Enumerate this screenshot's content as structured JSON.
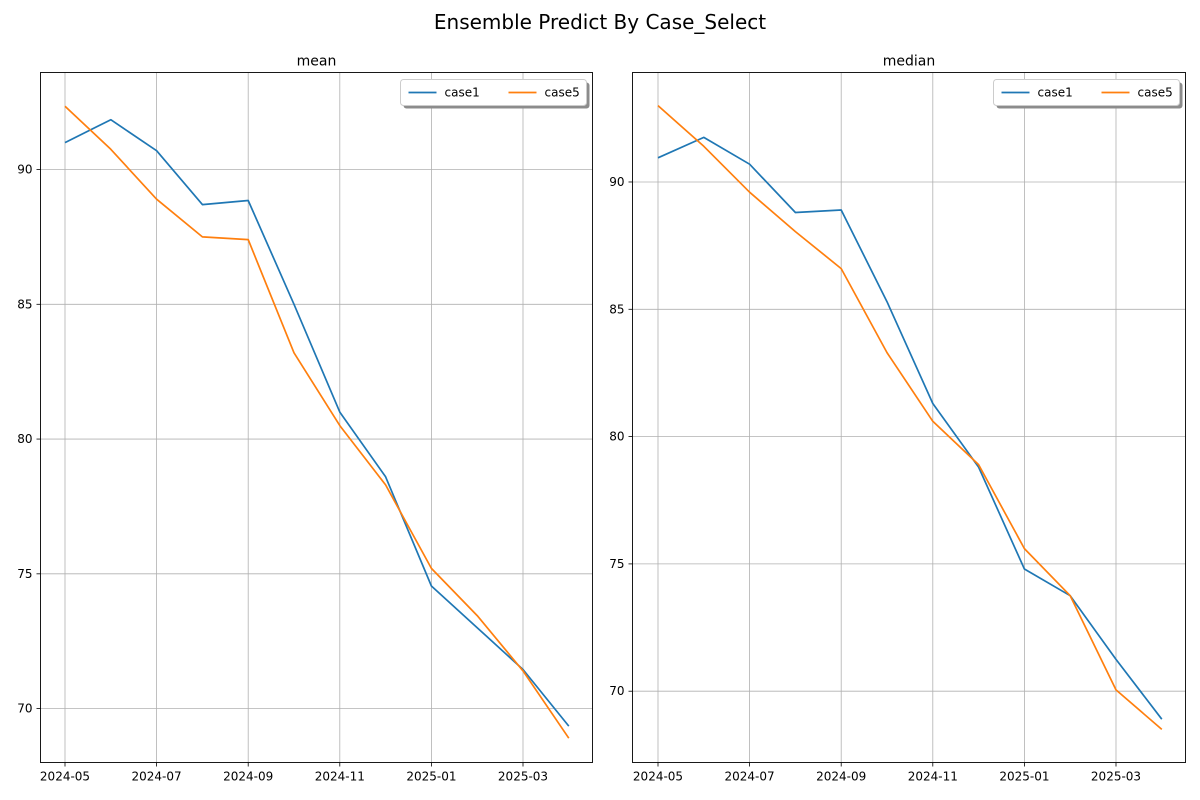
{
  "figure": {
    "title": "Ensemble Predict By Case_Select"
  },
  "colors": {
    "case1": "#1f77b4",
    "case5": "#ff7f0e",
    "grid": "#b0b0b0"
  },
  "chart_data": [
    {
      "type": "line",
      "title": "mean",
      "xlabel": "",
      "ylabel": "",
      "x": [
        "2024-05",
        "2024-06",
        "2024-07",
        "2024-08",
        "2024-09",
        "2024-10",
        "2024-11",
        "2024-12",
        "2025-01",
        "2025-02",
        "2025-03",
        "2025-04"
      ],
      "xticks": [
        "2024-05",
        "2024-07",
        "2024-09",
        "2024-11",
        "2025-01",
        "2025-03"
      ],
      "yticks": [
        70,
        75,
        80,
        85,
        90
      ],
      "ylim": [
        68.0,
        93.6
      ],
      "grid": true,
      "legend": "top-right",
      "series": [
        {
          "name": "case1",
          "values": [
            91.0,
            91.85,
            90.7,
            88.7,
            88.85,
            85.0,
            81.0,
            78.6,
            74.55,
            73.0,
            71.45,
            69.35
          ]
        },
        {
          "name": "case5",
          "values": [
            92.35,
            90.75,
            88.9,
            87.5,
            87.4,
            83.2,
            80.5,
            78.3,
            75.2,
            73.45,
            71.4,
            68.9
          ]
        }
      ]
    },
    {
      "type": "line",
      "title": "median",
      "xlabel": "",
      "ylabel": "",
      "x": [
        "2024-05",
        "2024-06",
        "2024-07",
        "2024-08",
        "2024-09",
        "2024-10",
        "2024-11",
        "2024-12",
        "2025-01",
        "2025-02",
        "2025-03",
        "2025-04"
      ],
      "xticks": [
        "2024-05",
        "2024-07",
        "2024-09",
        "2024-11",
        "2025-01",
        "2025-03"
      ],
      "yticks": [
        70,
        75,
        80,
        85,
        90
      ],
      "ylim": [
        67.2,
        94.3
      ],
      "grid": true,
      "legend": "top-right",
      "series": [
        {
          "name": "case1",
          "values": [
            90.95,
            91.75,
            90.7,
            88.8,
            88.9,
            85.3,
            81.3,
            78.8,
            74.8,
            73.75,
            71.25,
            68.9
          ]
        },
        {
          "name": "case5",
          "values": [
            93.0,
            91.4,
            89.6,
            88.05,
            86.6,
            83.3,
            80.6,
            78.9,
            75.6,
            73.75,
            70.05,
            68.5
          ]
        }
      ]
    }
  ]
}
